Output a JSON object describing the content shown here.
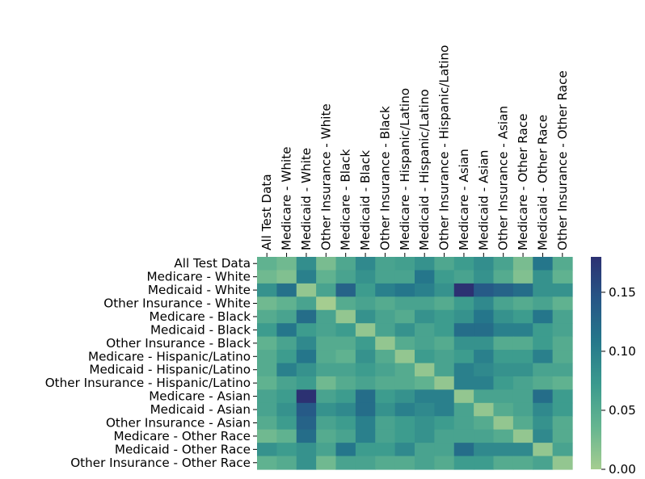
{
  "chart_data": {
    "type": "heatmap",
    "title": "",
    "xlabel": "",
    "ylabel": "",
    "labels": [
      "All Test Data",
      "Medicare - White",
      "Medicaid - White",
      "Other Insurance - White",
      "Medicare - Black",
      "Medicaid - Black",
      "Other Insurance - Black",
      "Medicare - Hispanic/Latino",
      "Medicaid - Hispanic/Latino",
      "Other Insurance - Hispanic/Latino",
      "Medicare - Asian",
      "Medicaid - Asian",
      "Other Insurance - Asian",
      "Medicare - Other Race",
      "Medicaid - Other Race",
      "Other Insurance - Other Race"
    ],
    "values": [
      [
        0.04,
        0.03,
        0.085,
        0.025,
        0.055,
        0.09,
        0.06,
        0.065,
        0.08,
        0.055,
        0.07,
        0.085,
        0.06,
        0.025,
        0.11,
        0.05
      ],
      [
        0.03,
        0.02,
        0.1,
        0.04,
        0.06,
        0.08,
        0.06,
        0.06,
        0.11,
        0.07,
        0.06,
        0.08,
        0.05,
        0.02,
        0.08,
        0.04
      ],
      [
        0.08,
        0.115,
        0.01,
        0.06,
        0.13,
        0.07,
        0.1,
        0.11,
        0.1,
        0.08,
        0.18,
        0.14,
        0.13,
        0.12,
        0.08,
        0.08
      ],
      [
        0.03,
        0.04,
        0.06,
        0.0,
        0.05,
        0.06,
        0.05,
        0.06,
        0.06,
        0.05,
        0.07,
        0.09,
        0.06,
        0.05,
        0.06,
        0.04
      ],
      [
        0.05,
        0.06,
        0.12,
        0.06,
        0.01,
        0.08,
        0.06,
        0.05,
        0.08,
        0.07,
        0.08,
        0.11,
        0.08,
        0.07,
        0.11,
        0.06
      ],
      [
        0.07,
        0.11,
        0.07,
        0.06,
        0.07,
        0.01,
        0.06,
        0.08,
        0.06,
        0.07,
        0.12,
        0.12,
        0.1,
        0.1,
        0.07,
        0.06
      ],
      [
        0.04,
        0.06,
        0.09,
        0.05,
        0.05,
        0.07,
        0.01,
        0.05,
        0.06,
        0.05,
        0.08,
        0.08,
        0.05,
        0.05,
        0.07,
        0.05
      ],
      [
        0.05,
        0.07,
        0.11,
        0.05,
        0.04,
        0.08,
        0.05,
        0.01,
        0.07,
        0.06,
        0.07,
        0.1,
        0.07,
        0.07,
        0.1,
        0.05
      ],
      [
        0.05,
        0.1,
        0.08,
        0.06,
        0.06,
        0.07,
        0.06,
        0.05,
        0.01,
        0.06,
        0.1,
        0.09,
        0.08,
        0.08,
        0.06,
        0.06
      ],
      [
        0.04,
        0.06,
        0.07,
        0.03,
        0.05,
        0.06,
        0.05,
        0.05,
        0.04,
        0.01,
        0.1,
        0.1,
        0.07,
        0.06,
        0.05,
        0.04
      ],
      [
        0.06,
        0.07,
        0.18,
        0.06,
        0.07,
        0.12,
        0.07,
        0.08,
        0.1,
        0.1,
        0.01,
        0.06,
        0.06,
        0.06,
        0.12,
        0.07
      ],
      [
        0.06,
        0.08,
        0.14,
        0.08,
        0.09,
        0.12,
        0.08,
        0.1,
        0.09,
        0.1,
        0.06,
        0.01,
        0.05,
        0.06,
        0.09,
        0.07
      ],
      [
        0.05,
        0.07,
        0.13,
        0.06,
        0.07,
        0.1,
        0.06,
        0.07,
        0.08,
        0.07,
        0.06,
        0.05,
        0.01,
        0.05,
        0.08,
        0.05
      ],
      [
        0.03,
        0.04,
        0.12,
        0.05,
        0.06,
        0.1,
        0.06,
        0.07,
        0.08,
        0.06,
        0.06,
        0.06,
        0.05,
        0.01,
        0.09,
        0.05
      ],
      [
        0.08,
        0.07,
        0.08,
        0.06,
        0.11,
        0.07,
        0.07,
        0.09,
        0.06,
        0.06,
        0.12,
        0.09,
        0.09,
        0.09,
        0.01,
        0.06
      ],
      [
        0.04,
        0.05,
        0.08,
        0.03,
        0.06,
        0.06,
        0.05,
        0.05,
        0.06,
        0.05,
        0.07,
        0.07,
        0.05,
        0.05,
        0.06,
        0.01
      ]
    ],
    "vmin": 0.0,
    "vmax": 0.18,
    "colormap": "crest",
    "colormap_stops": [
      "#a5cd90",
      "#65b590",
      "#3b9a8e",
      "#25788b",
      "#265686",
      "#2c3172"
    ],
    "colorbar_ticks": [
      0.0,
      0.05,
      0.1,
      0.15
    ],
    "colorbar_tick_labels": [
      "0.00",
      "0.05",
      "0.10",
      "0.15"
    ]
  }
}
